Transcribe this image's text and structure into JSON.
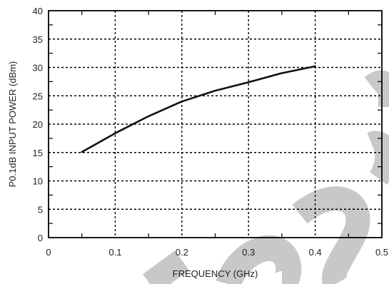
{
  "chart_data": {
    "type": "line",
    "title": "",
    "xlabel": "FREQUENCY (GHz)",
    "ylabel": "P0.1dB INPUT POWER (dBm)",
    "xlim": [
      0,
      0.5
    ],
    "ylim": [
      0,
      40
    ],
    "xticks": [
      "0",
      "0.1",
      "0.2",
      "0.3",
      "0.4",
      "0.5"
    ],
    "yticks": [
      "0",
      "5",
      "10",
      "15",
      "20",
      "25",
      "30",
      "35",
      "40"
    ],
    "grid": true,
    "grid_style": "dotted",
    "series": [
      {
        "x": [
          0.05,
          0.1,
          0.15,
          0.2,
          0.25,
          0.3,
          0.35,
          0.4
        ],
        "y": [
          15.1,
          18.4,
          21.4,
          24.0,
          25.9,
          27.4,
          29.0,
          30.2
        ],
        "color": "#111111"
      }
    ]
  }
}
